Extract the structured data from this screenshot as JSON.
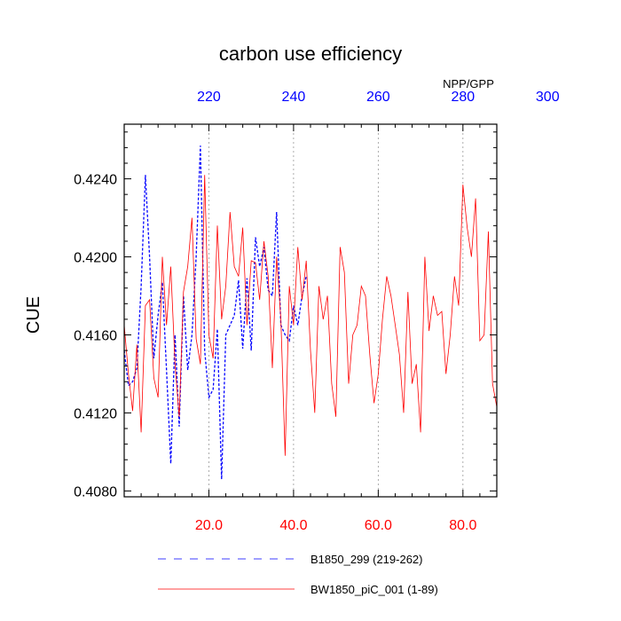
{
  "chart_data": {
    "type": "line",
    "title": "carbon use efficiency",
    "ylabel": "CUE",
    "top_axis_unit": "NPP/GPP",
    "xlim": [
      0,
      88
    ],
    "ylim": [
      0.4077,
      0.4268
    ],
    "x_ticks": [
      20,
      40,
      60,
      80
    ],
    "x_tick_labels": [
      "20.0",
      "40.0",
      "60.0",
      "80.0"
    ],
    "top_ticks": [
      220,
      240,
      260,
      280,
      300
    ],
    "top_tick_labels": [
      "220",
      "240",
      "260",
      "280",
      "300"
    ],
    "top_axis_offset": 200,
    "y_ticks": [
      0.408,
      0.412,
      0.416,
      0.42,
      0.424
    ],
    "y_tick_labels": [
      "0.4080",
      "0.4120",
      "0.4160",
      "0.4200",
      "0.4240"
    ],
    "gridlines_x": [
      20,
      40,
      60,
      80
    ],
    "colors": {
      "series_1": "#0000ff",
      "series_2": "#ff0000",
      "top_axis": "#0000ff",
      "bottom_axis": "#ff0000"
    },
    "series": [
      {
        "name": "B1850_299 (219-262)",
        "color": "#0000ff",
        "dash": "dashed",
        "x": [
          0,
          1,
          2,
          3,
          4,
          5,
          6,
          7,
          8,
          9,
          10,
          11,
          12,
          13,
          14,
          15,
          16,
          17,
          18,
          19,
          20,
          21,
          22,
          23,
          24,
          25,
          26,
          27,
          28,
          29,
          30,
          31,
          32,
          33,
          34,
          35,
          36,
          37,
          38,
          39,
          40,
          41,
          42,
          43
        ],
        "values": [
          0.4152,
          0.4134,
          0.4136,
          0.4143,
          0.4185,
          0.4242,
          0.42,
          0.4148,
          0.417,
          0.4187,
          0.4142,
          0.4094,
          0.416,
          0.4113,
          0.418,
          0.4142,
          0.416,
          0.42,
          0.4257,
          0.4152,
          0.4128,
          0.4132,
          0.4163,
          0.4086,
          0.416,
          0.4165,
          0.417,
          0.4188,
          0.4153,
          0.4189,
          0.4152,
          0.421,
          0.4195,
          0.4205,
          0.4183,
          0.418,
          0.4223,
          0.4165,
          0.416,
          0.4157,
          0.4175,
          0.4165,
          0.418,
          0.419
        ]
      },
      {
        "name": "BW1850_piC_001 (1-89)",
        "color": "#ff0000",
        "dash": "solid",
        "x": [
          0,
          1,
          2,
          3,
          4,
          5,
          6,
          7,
          8,
          9,
          10,
          11,
          12,
          13,
          14,
          15,
          16,
          17,
          18,
          19,
          20,
          21,
          22,
          23,
          24,
          25,
          26,
          27,
          28,
          29,
          30,
          31,
          32,
          33,
          34,
          35,
          36,
          37,
          38,
          39,
          40,
          41,
          42,
          43,
          44,
          45,
          46,
          47,
          48,
          49,
          50,
          51,
          52,
          53,
          54,
          55,
          56,
          57,
          58,
          59,
          60,
          61,
          62,
          63,
          64,
          65,
          66,
          67,
          68,
          69,
          70,
          71,
          72,
          73,
          74,
          75,
          76,
          77,
          78,
          79,
          80,
          81,
          82,
          83,
          84,
          85,
          86,
          87,
          88
        ],
        "values": [
          0.4165,
          0.414,
          0.4121,
          0.4155,
          0.411,
          0.4175,
          0.4178,
          0.4138,
          0.4128,
          0.42,
          0.4165,
          0.4195,
          0.4145,
          0.4118,
          0.4182,
          0.4195,
          0.422,
          0.4158,
          0.4145,
          0.4242,
          0.416,
          0.4148,
          0.4216,
          0.4168,
          0.4185,
          0.4223,
          0.4195,
          0.419,
          0.4215,
          0.4165,
          0.4198,
          0.4197,
          0.4178,
          0.4208,
          0.419,
          0.4143,
          0.42,
          0.4168,
          0.4098,
          0.4185,
          0.4165,
          0.4205,
          0.4178,
          0.4198,
          0.4152,
          0.412,
          0.4185,
          0.4168,
          0.418,
          0.4135,
          0.4118,
          0.4205,
          0.4192,
          0.4135,
          0.416,
          0.4165,
          0.4185,
          0.418,
          0.415,
          0.4125,
          0.414,
          0.4168,
          0.419,
          0.418,
          0.4165,
          0.415,
          0.412,
          0.4182,
          0.4135,
          0.4145,
          0.411,
          0.42,
          0.4162,
          0.418,
          0.417,
          0.4172,
          0.414,
          0.416,
          0.419,
          0.4175,
          0.4237,
          0.4215,
          0.42,
          0.423,
          0.4157,
          0.416,
          0.4213,
          0.4135,
          0.4123
        ]
      }
    ]
  }
}
